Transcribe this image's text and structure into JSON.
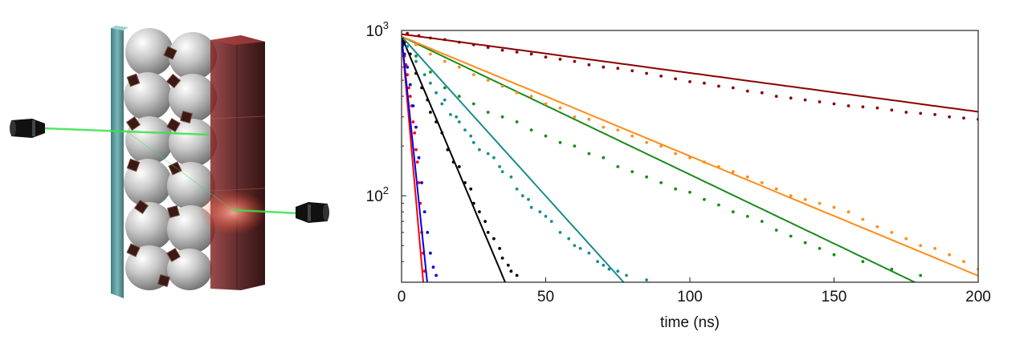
{
  "figure": {
    "illustration": {
      "description_icon": "device-laser-sample-icon",
      "colors": {
        "glass": "#5a9a9c",
        "spheres": "#c9c9c9",
        "crystal": "#6a1f1f",
        "beam": "#38e04a",
        "nozzle": "#111111"
      }
    }
  },
  "chart_data": {
    "type": "scatter",
    "title": "",
    "xlabel": "time (ns)",
    "ylabel": "",
    "xlim": [
      0,
      200
    ],
    "ylim": [
      30,
      1000
    ],
    "yscale": "log",
    "xticks": [
      0,
      50,
      100,
      150,
      200
    ],
    "xtick_labels": [
      "0",
      "50",
      "100",
      "150",
      "200"
    ],
    "ytick_labels": [
      {
        "base": "10",
        "exp": "2",
        "value": 100
      },
      {
        "base": "10",
        "exp": "3",
        "value": 1000
      }
    ],
    "grid": false,
    "legend": "none",
    "series": [
      {
        "color": "#ff0000",
        "fit": {
          "A": 920,
          "tau": 2.2
        },
        "points": [
          [
            0.5,
            820
          ],
          [
            1,
            700
          ],
          [
            1.5,
            620
          ],
          [
            2,
            540
          ],
          [
            2.5,
            450
          ],
          [
            3,
            400
          ],
          [
            3.5,
            350
          ],
          [
            4,
            280
          ],
          [
            4.5,
            240
          ],
          [
            5,
            190
          ],
          [
            5.5,
            160
          ],
          [
            6,
            120
          ],
          [
            6.5,
            90
          ],
          [
            7,
            60
          ],
          [
            7.5,
            45
          ],
          [
            8,
            35
          ]
        ]
      },
      {
        "color": "#0000ee",
        "fit": {
          "A": 920,
          "tau": 2.6
        },
        "points": [
          [
            0.5,
            830
          ],
          [
            1,
            720
          ],
          [
            2,
            600
          ],
          [
            3,
            470
          ],
          [
            4,
            350
          ],
          [
            5,
            260
          ],
          [
            6,
            170
          ],
          [
            7,
            120
          ],
          [
            8,
            80
          ],
          [
            9,
            60
          ],
          [
            10,
            45
          ],
          [
            11,
            37
          ],
          [
            12,
            33
          ]
        ]
      },
      {
        "color": "#000000",
        "fit": {
          "A": 920,
          "tau": 10.5
        },
        "points": [
          [
            1,
            850
          ],
          [
            3,
            720
          ],
          [
            5,
            550
          ],
          [
            7,
            450
          ],
          [
            9,
            380
          ],
          [
            10,
            320
          ],
          [
            12,
            280
          ],
          [
            14,
            240
          ],
          [
            16,
            190
          ],
          [
            18,
            160
          ],
          [
            20,
            150
          ],
          [
            22,
            120
          ],
          [
            24,
            110
          ],
          [
            25,
            90
          ],
          [
            27,
            80
          ],
          [
            29,
            70
          ],
          [
            30,
            60
          ],
          [
            32,
            55
          ],
          [
            34,
            48
          ],
          [
            35,
            42
          ],
          [
            37,
            38
          ],
          [
            38,
            35
          ],
          [
            40,
            33
          ]
        ]
      },
      {
        "color": "#1a8c8c",
        "fit": {
          "A": 920,
          "tau": 22.5
        },
        "points": [
          [
            2,
            800
          ],
          [
            5,
            650
          ],
          [
            8,
            540
          ],
          [
            10,
            480
          ],
          [
            12,
            420
          ],
          [
            14,
            360
          ],
          [
            15,
            380
          ],
          [
            17,
            310
          ],
          [
            19,
            300
          ],
          [
            20,
            280
          ],
          [
            22,
            250
          ],
          [
            24,
            230
          ],
          [
            25,
            210
          ],
          [
            27,
            190
          ],
          [
            30,
            180
          ],
          [
            32,
            170
          ],
          [
            34,
            150
          ],
          [
            35,
            140
          ],
          [
            38,
            130
          ],
          [
            40,
            110
          ],
          [
            42,
            100
          ],
          [
            44,
            95
          ],
          [
            45,
            85
          ],
          [
            48,
            80
          ],
          [
            50,
            75
          ],
          [
            52,
            70
          ],
          [
            55,
            60
          ],
          [
            58,
            55
          ],
          [
            60,
            50
          ],
          [
            62,
            48
          ],
          [
            65,
            45
          ],
          [
            68,
            40
          ],
          [
            70,
            38
          ],
          [
            72,
            36
          ],
          [
            75,
            35
          ],
          [
            78,
            33
          ],
          [
            85,
            31
          ]
        ]
      },
      {
        "color": "#1a8a1a",
        "fit": {
          "A": 920,
          "tau": 52
        },
        "points": [
          [
            5,
            700
          ],
          [
            10,
            560
          ],
          [
            15,
            450
          ],
          [
            20,
            400
          ],
          [
            25,
            360
          ],
          [
            30,
            320
          ],
          [
            35,
            300
          ],
          [
            40,
            280
          ],
          [
            45,
            250
          ],
          [
            50,
            230
          ],
          [
            55,
            210
          ],
          [
            60,
            200
          ],
          [
            65,
            180
          ],
          [
            70,
            170
          ],
          [
            75,
            150
          ],
          [
            80,
            140
          ],
          [
            85,
            130
          ],
          [
            90,
            120
          ],
          [
            95,
            110
          ],
          [
            100,
            105
          ],
          [
            105,
            95
          ],
          [
            110,
            88
          ],
          [
            115,
            80
          ],
          [
            120,
            75
          ],
          [
            125,
            70
          ],
          [
            130,
            62
          ],
          [
            135,
            57
          ],
          [
            140,
            52
          ],
          [
            145,
            48
          ],
          [
            150,
            44
          ],
          [
            160,
            40
          ],
          [
            170,
            36
          ],
          [
            180,
            33
          ]
        ]
      },
      {
        "color": "#ff8c1a",
        "fit": {
          "A": 920,
          "tau": 60
        },
        "points": [
          [
            5,
            820
          ],
          [
            10,
            720
          ],
          [
            15,
            650
          ],
          [
            20,
            600
          ],
          [
            25,
            540
          ],
          [
            30,
            500
          ],
          [
            35,
            460
          ],
          [
            40,
            420
          ],
          [
            45,
            400
          ],
          [
            50,
            360
          ],
          [
            55,
            340
          ],
          [
            60,
            300
          ],
          [
            65,
            290
          ],
          [
            70,
            260
          ],
          [
            75,
            250
          ],
          [
            80,
            230
          ],
          [
            85,
            210
          ],
          [
            90,
            200
          ],
          [
            95,
            180
          ],
          [
            100,
            170
          ],
          [
            105,
            160
          ],
          [
            110,
            150
          ],
          [
            115,
            140
          ],
          [
            120,
            130
          ],
          [
            125,
            120
          ],
          [
            130,
            110
          ],
          [
            135,
            100
          ],
          [
            140,
            95
          ],
          [
            145,
            90
          ],
          [
            150,
            85
          ],
          [
            155,
            80
          ],
          [
            160,
            72
          ],
          [
            165,
            65
          ],
          [
            170,
            60
          ],
          [
            175,
            55
          ],
          [
            180,
            50
          ],
          [
            185,
            48
          ],
          [
            190,
            44
          ],
          [
            195,
            40
          ],
          [
            200,
            36
          ]
        ]
      },
      {
        "color": "#8b0000",
        "fit": {
          "A": 950,
          "tau": 185
        },
        "points": [
          [
            2,
            960
          ],
          [
            6,
            930
          ],
          [
            10,
            900
          ],
          [
            15,
            880
          ],
          [
            20,
            850
          ],
          [
            25,
            820
          ],
          [
            30,
            790
          ],
          [
            35,
            760
          ],
          [
            40,
            740
          ],
          [
            45,
            720
          ],
          [
            50,
            690
          ],
          [
            55,
            670
          ],
          [
            60,
            650
          ],
          [
            65,
            620
          ],
          [
            70,
            600
          ],
          [
            75,
            590
          ],
          [
            80,
            570
          ],
          [
            85,
            550
          ],
          [
            90,
            530
          ],
          [
            95,
            510
          ],
          [
            100,
            490
          ],
          [
            105,
            480
          ],
          [
            110,
            460
          ],
          [
            115,
            450
          ],
          [
            120,
            430
          ],
          [
            125,
            420
          ],
          [
            130,
            400
          ],
          [
            135,
            390
          ],
          [
            140,
            380
          ],
          [
            145,
            370
          ],
          [
            150,
            360
          ],
          [
            155,
            350
          ],
          [
            160,
            345
          ],
          [
            165,
            340
          ],
          [
            170,
            330
          ],
          [
            175,
            320
          ],
          [
            180,
            315
          ],
          [
            185,
            310
          ],
          [
            190,
            300
          ],
          [
            195,
            295
          ],
          [
            200,
            290
          ]
        ]
      }
    ]
  }
}
